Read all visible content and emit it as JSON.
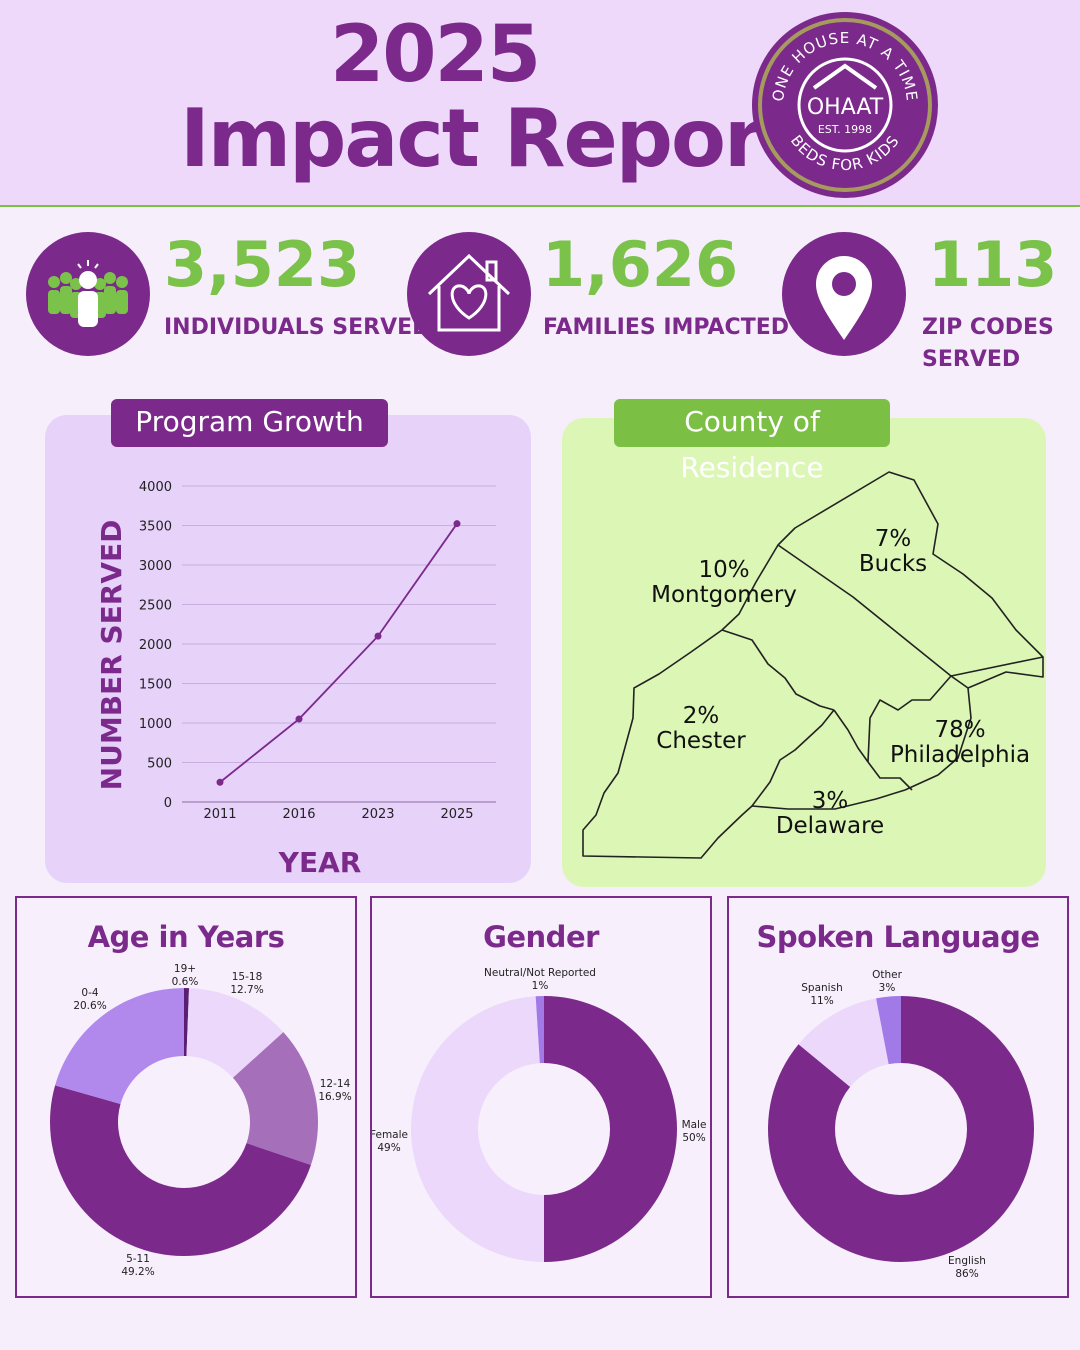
{
  "header": {
    "year": "2025",
    "title": "Impact Report"
  },
  "logo": {
    "top_text": "ONE HOUSE AT A TIME",
    "name": "OHAAT",
    "est": "EST. 1998",
    "bottom_text": "BEDS FOR KIDS",
    "icon": "house-roof-icon"
  },
  "stats": [
    {
      "number": "3,523",
      "label_lines": [
        "INDIVIDUALS SERVED"
      ],
      "icon": "people-group-icon"
    },
    {
      "number": "1,626",
      "label_lines": [
        "FAMILIES IMPACTED"
      ],
      "icon": "house-heart-icon"
    },
    {
      "number": "113",
      "label_lines": [
        "ZIP CODES",
        "SERVED"
      ],
      "icon": "location-pin-icon"
    }
  ],
  "colors": {
    "purple": "#7b2a8c",
    "green": "#7bc24a",
    "light_purple": "#ecd8fb",
    "light_green": "#dcf6b6"
  },
  "chart_data": [
    {
      "type": "line",
      "title": "Program Growth",
      "xlabel": "YEAR",
      "ylabel": "NUMBER SERVED",
      "categories": [
        "2011",
        "2016",
        "2023",
        "2025"
      ],
      "values": [
        250,
        1050,
        2100,
        3523
      ],
      "ylim": [
        0,
        4000
      ],
      "yticks": [
        0,
        500,
        1000,
        1500,
        2000,
        2500,
        3000,
        3500,
        4000
      ],
      "grid": true
    },
    {
      "type": "map",
      "title": "County of Residence",
      "regions": [
        {
          "name": "Bucks",
          "percent": "7%"
        },
        {
          "name": "Montgomery",
          "percent": "10%"
        },
        {
          "name": "Chester",
          "percent": "2%"
        },
        {
          "name": "Philadelphia",
          "percent": "78%"
        },
        {
          "name": "Delaware",
          "percent": "3%"
        }
      ]
    },
    {
      "type": "pie",
      "title": "Age in Years",
      "slices": [
        {
          "label": "19+",
          "value": 0.6,
          "text": "0.6%",
          "color": "#5a1f73"
        },
        {
          "label": "15-18",
          "value": 12.7,
          "text": "12.7%",
          "color": "#ecd8fb"
        },
        {
          "label": "12-14",
          "value": 16.9,
          "text": "16.9%",
          "color": "#a56fb9"
        },
        {
          "label": "5-11",
          "value": 49.2,
          "text": "49.2%",
          "color": "#7b2a8c"
        },
        {
          "label": "0-4",
          "value": 20.6,
          "text": "20.6%",
          "color": "#b188ec"
        }
      ]
    },
    {
      "type": "pie",
      "title": "Gender",
      "slices": [
        {
          "label": "Male",
          "value": 50,
          "text": "50%",
          "color": "#7b2a8c"
        },
        {
          "label": "Female",
          "value": 49,
          "text": "49%",
          "color": "#ecd8fb"
        },
        {
          "label": "Neutral/Not Reported",
          "value": 1,
          "text": "1%",
          "color": "#a27ae8"
        }
      ]
    },
    {
      "type": "pie",
      "title": "Spoken Language",
      "slices": [
        {
          "label": "English",
          "value": 86,
          "text": "86%",
          "color": "#7b2a8c"
        },
        {
          "label": "Spanish",
          "value": 11,
          "text": "11%",
          "color": "#ecd8fb"
        },
        {
          "label": "Other",
          "value": 3,
          "text": "3%",
          "color": "#a27ae8"
        }
      ]
    }
  ]
}
